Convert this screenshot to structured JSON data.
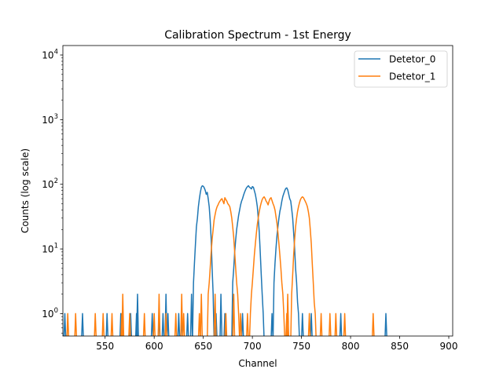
{
  "chart_data": {
    "type": "line",
    "title": "Calibration Spectrum - 1st Energy",
    "xlabel": "Channel",
    "ylabel": "Counts (log scale)",
    "yscale": "log",
    "xlim": [
      507,
      904
    ],
    "ylim": [
      0.45,
      14000
    ],
    "xticks": [
      550,
      600,
      650,
      700,
      750,
      800,
      850,
      900
    ],
    "xtick_labels": [
      "550",
      "600",
      "650",
      "700",
      "750",
      "800",
      "850",
      "900"
    ],
    "yticks": [
      1,
      10,
      100,
      1000,
      10000
    ],
    "ytick_labels": [
      {
        "base": "10",
        "exp": "0"
      },
      {
        "base": "10",
        "exp": "1"
      },
      {
        "base": "10",
        "exp": "2"
      },
      {
        "base": "10",
        "exp": "3"
      },
      {
        "base": "10",
        "exp": "4"
      }
    ],
    "grid": false,
    "legend_position": "top-right",
    "series": [
      {
        "name": "Detetor_0",
        "color": "#1f77b4",
        "peak_segments": [
          {
            "x": [
              640,
              641,
              642,
              643,
              644,
              645,
              646,
              647,
              648,
              649,
              650,
              651,
              652,
              653,
              654,
              655,
              656,
              657,
              658,
              659,
              660
            ],
            "y": [
              3,
              6,
              12,
              22,
              30,
              45,
              60,
              75,
              90,
              95,
              93,
              88,
              80,
              70,
              75,
              60,
              45,
              28,
              14,
              5,
              2
            ]
          },
          {
            "x": [
              680,
              681,
              682,
              683,
              684,
              685,
              686,
              687,
              688,
              689,
              690,
              691,
              692,
              693,
              694,
              695,
              696,
              697,
              698,
              699,
              700,
              701,
              702,
              703,
              704,
              705,
              706,
              707,
              708,
              709,
              710,
              711
            ],
            "y": [
              3,
              5,
              9,
              14,
              20,
              26,
              33,
              40,
              48,
              55,
              60,
              68,
              75,
              82,
              88,
              92,
              95,
              90,
              88,
              85,
              92,
              90,
              80,
              70,
              58,
              45,
              30,
              18,
              9,
              4,
              2,
              1
            ]
          },
          {
            "x": [
              722,
              723,
              724,
              725,
              726,
              727,
              728,
              729,
              730,
              731,
              732,
              733,
              734,
              735,
              736,
              737,
              738,
              739,
              740,
              741,
              742,
              743,
              744,
              745,
              746,
              747
            ],
            "y": [
              3,
              6,
              10,
              16,
              22,
              30,
              38,
              45,
              55,
              65,
              72,
              80,
              86,
              88,
              82,
              70,
              60,
              55,
              42,
              30,
              18,
              10,
              5,
              3,
              1.5,
              1
            ]
          }
        ],
        "single_counts": [
          509,
          527,
          552,
          566,
          576,
          582,
          598,
          605,
          609,
          614,
          625,
          628,
          634,
          663,
          672,
          690,
          720,
          751,
          760,
          790,
          836
        ],
        "double_counts": [
          583,
          612,
          638,
          668
        ]
      },
      {
        "name": "Detetor_1",
        "color": "#ff7f0e",
        "peak_segments": [
          {
            "x": [
              655,
              656,
              657,
              658,
              659,
              660,
              661,
              662,
              663,
              664,
              665,
              666,
              667,
              668,
              669,
              670,
              671,
              672,
              673,
              674,
              675,
              676,
              677,
              678,
              679,
              680,
              681,
              682,
              683,
              684,
              685,
              686
            ],
            "y": [
              2,
              3,
              5,
              9,
              14,
              20,
              28,
              34,
              40,
              45,
              48,
              52,
              55,
              58,
              60,
              55,
              50,
              62,
              58,
              55,
              50,
              48,
              45,
              38,
              30,
              22,
              15,
              9,
              5,
              3,
              2,
              1
            ]
          },
          {
            "x": [
              698,
              699,
              700,
              701,
              702,
              703,
              704,
              705,
              706,
              707,
              708,
              709,
              710,
              711,
              712,
              713,
              714,
              715,
              716,
              717,
              718,
              719,
              720,
              721,
              722,
              723,
              724,
              725,
              726,
              727,
              728,
              729,
              730,
              731,
              732
            ],
            "y": [
              1,
              2,
              3,
              5,
              8,
              12,
              17,
              24,
              30,
              38,
              45,
              52,
              58,
              62,
              64,
              60,
              55,
              52,
              48,
              55,
              60,
              62,
              56,
              50,
              46,
              40,
              32,
              25,
              18,
              12,
              8,
              5,
              3,
              2,
              1
            ]
          },
          {
            "x": [
              740,
              741,
              742,
              743,
              744,
              745,
              746,
              747,
              748,
              749,
              750,
              751,
              752,
              753,
              754,
              755,
              756,
              757,
              758,
              759,
              760,
              761,
              762,
              763,
              764
            ],
            "y": [
              2,
              4,
              8,
              14,
              22,
              30,
              38,
              45,
              52,
              58,
              62,
              64,
              62,
              58,
              54,
              50,
              45,
              38,
              30,
              20,
              12,
              6,
              3,
              1.5,
              1
            ]
          }
        ],
        "single_counts": [
          512,
          520,
          540,
          548,
          557,
          567,
          575,
          590,
          600,
          612,
          622,
          630,
          646,
          673,
          688,
          695,
          735,
          758,
          770,
          779,
          785,
          794,
          823
        ],
        "double_counts": [
          568,
          605,
          628,
          648,
          662,
          681,
          736
        ]
      }
    ]
  }
}
